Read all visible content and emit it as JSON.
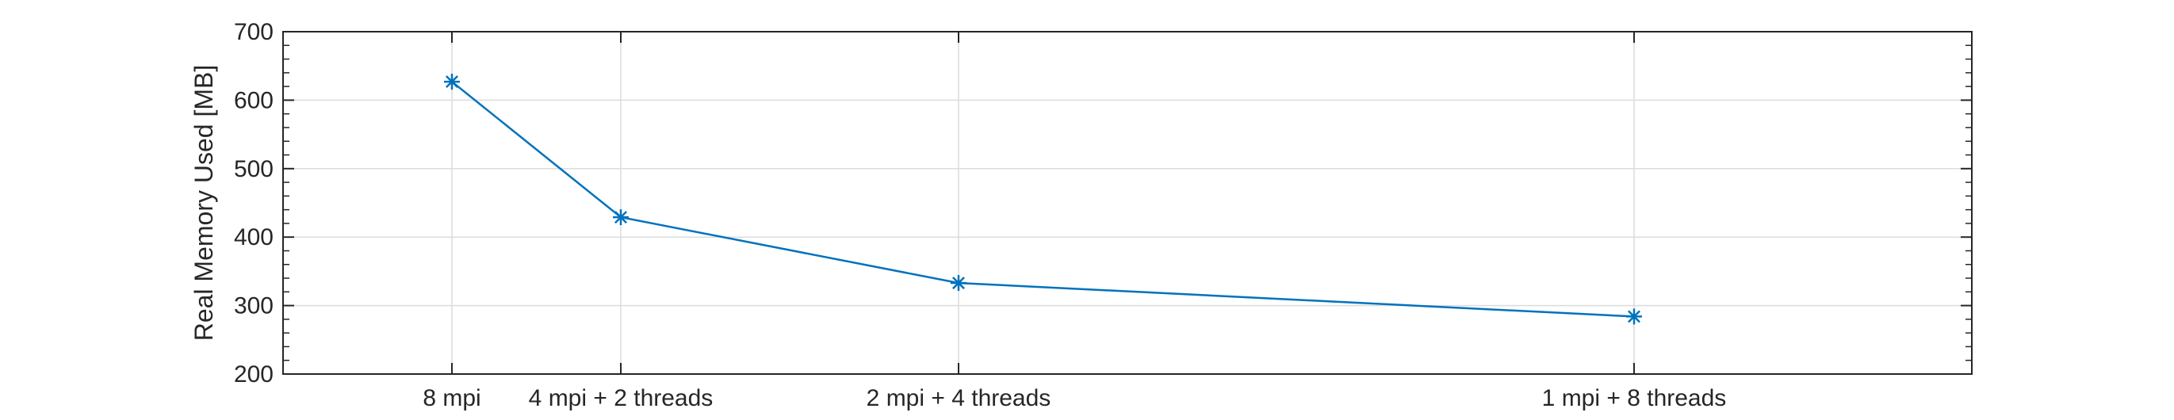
{
  "chart_data": {
    "type": "line",
    "title": "",
    "xlabel": "",
    "ylabel": "Real Memory Used [MB]",
    "grid": true,
    "x_ticks": [
      {
        "x": 1,
        "label": "8 mpi"
      },
      {
        "x": 2,
        "label": "4 mpi + 2 threads"
      },
      {
        "x": 4,
        "label": "2 mpi + 4 threads"
      },
      {
        "x": 8,
        "label": "1 mpi + 8 threads"
      }
    ],
    "xlim": [
      0,
      10
    ],
    "ylim": [
      200,
      700
    ],
    "y_ticks": [
      200,
      300,
      400,
      500,
      600,
      700
    ],
    "series": [
      {
        "x": [
          1,
          2,
          4,
          8
        ],
        "values": [
          627,
          429,
          333,
          284
        ],
        "color": "#0072BD",
        "marker": "asterisk"
      }
    ]
  }
}
